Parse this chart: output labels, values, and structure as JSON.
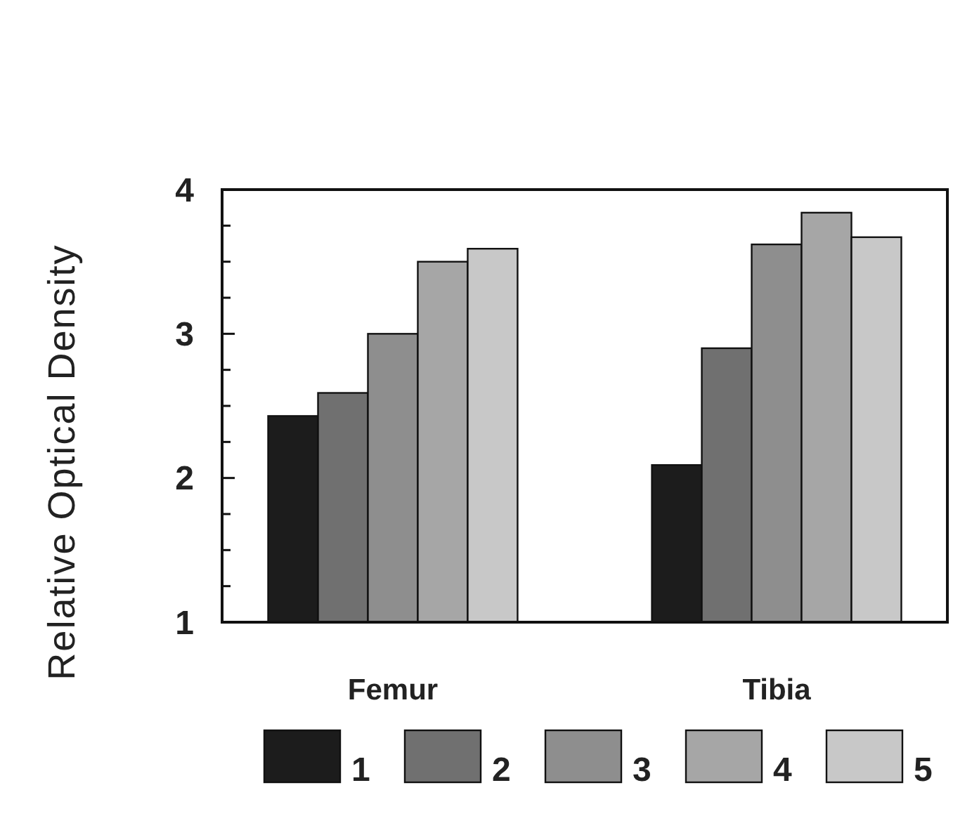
{
  "chart_data": {
    "type": "bar",
    "ylabel": "Relative Optical Density",
    "categories": [
      "Femur",
      "Tibia"
    ],
    "series": [
      {
        "name": "1",
        "color": "#1c1c1c",
        "values": [
          2.43,
          2.09
        ]
      },
      {
        "name": "2",
        "color": "#707070",
        "values": [
          2.59,
          2.9
        ]
      },
      {
        "name": "3",
        "color": "#8e8e8e",
        "values": [
          3.0,
          3.62
        ]
      },
      {
        "name": "4",
        "color": "#a6a6a6",
        "values": [
          3.5,
          3.84
        ]
      },
      {
        "name": "5",
        "color": "#c8c8c8",
        "values": [
          3.59,
          3.67
        ]
      }
    ],
    "ylim": [
      1,
      4
    ],
    "yticks": [
      1,
      {
        "value": 1.25,
        "label": null
      },
      {
        "value": 1.5,
        "label": null
      },
      {
        "value": 1.75,
        "label": null
      },
      2,
      {
        "value": 2.25,
        "label": null
      },
      {
        "value": 2.5,
        "label": null
      },
      {
        "value": 2.75,
        "label": null
      },
      3,
      {
        "value": 3.25,
        "label": null
      },
      {
        "value": 3.5,
        "label": null
      },
      {
        "value": 3.75,
        "label": null
      },
      4
    ],
    "legend": "bottom",
    "grid": false
  }
}
